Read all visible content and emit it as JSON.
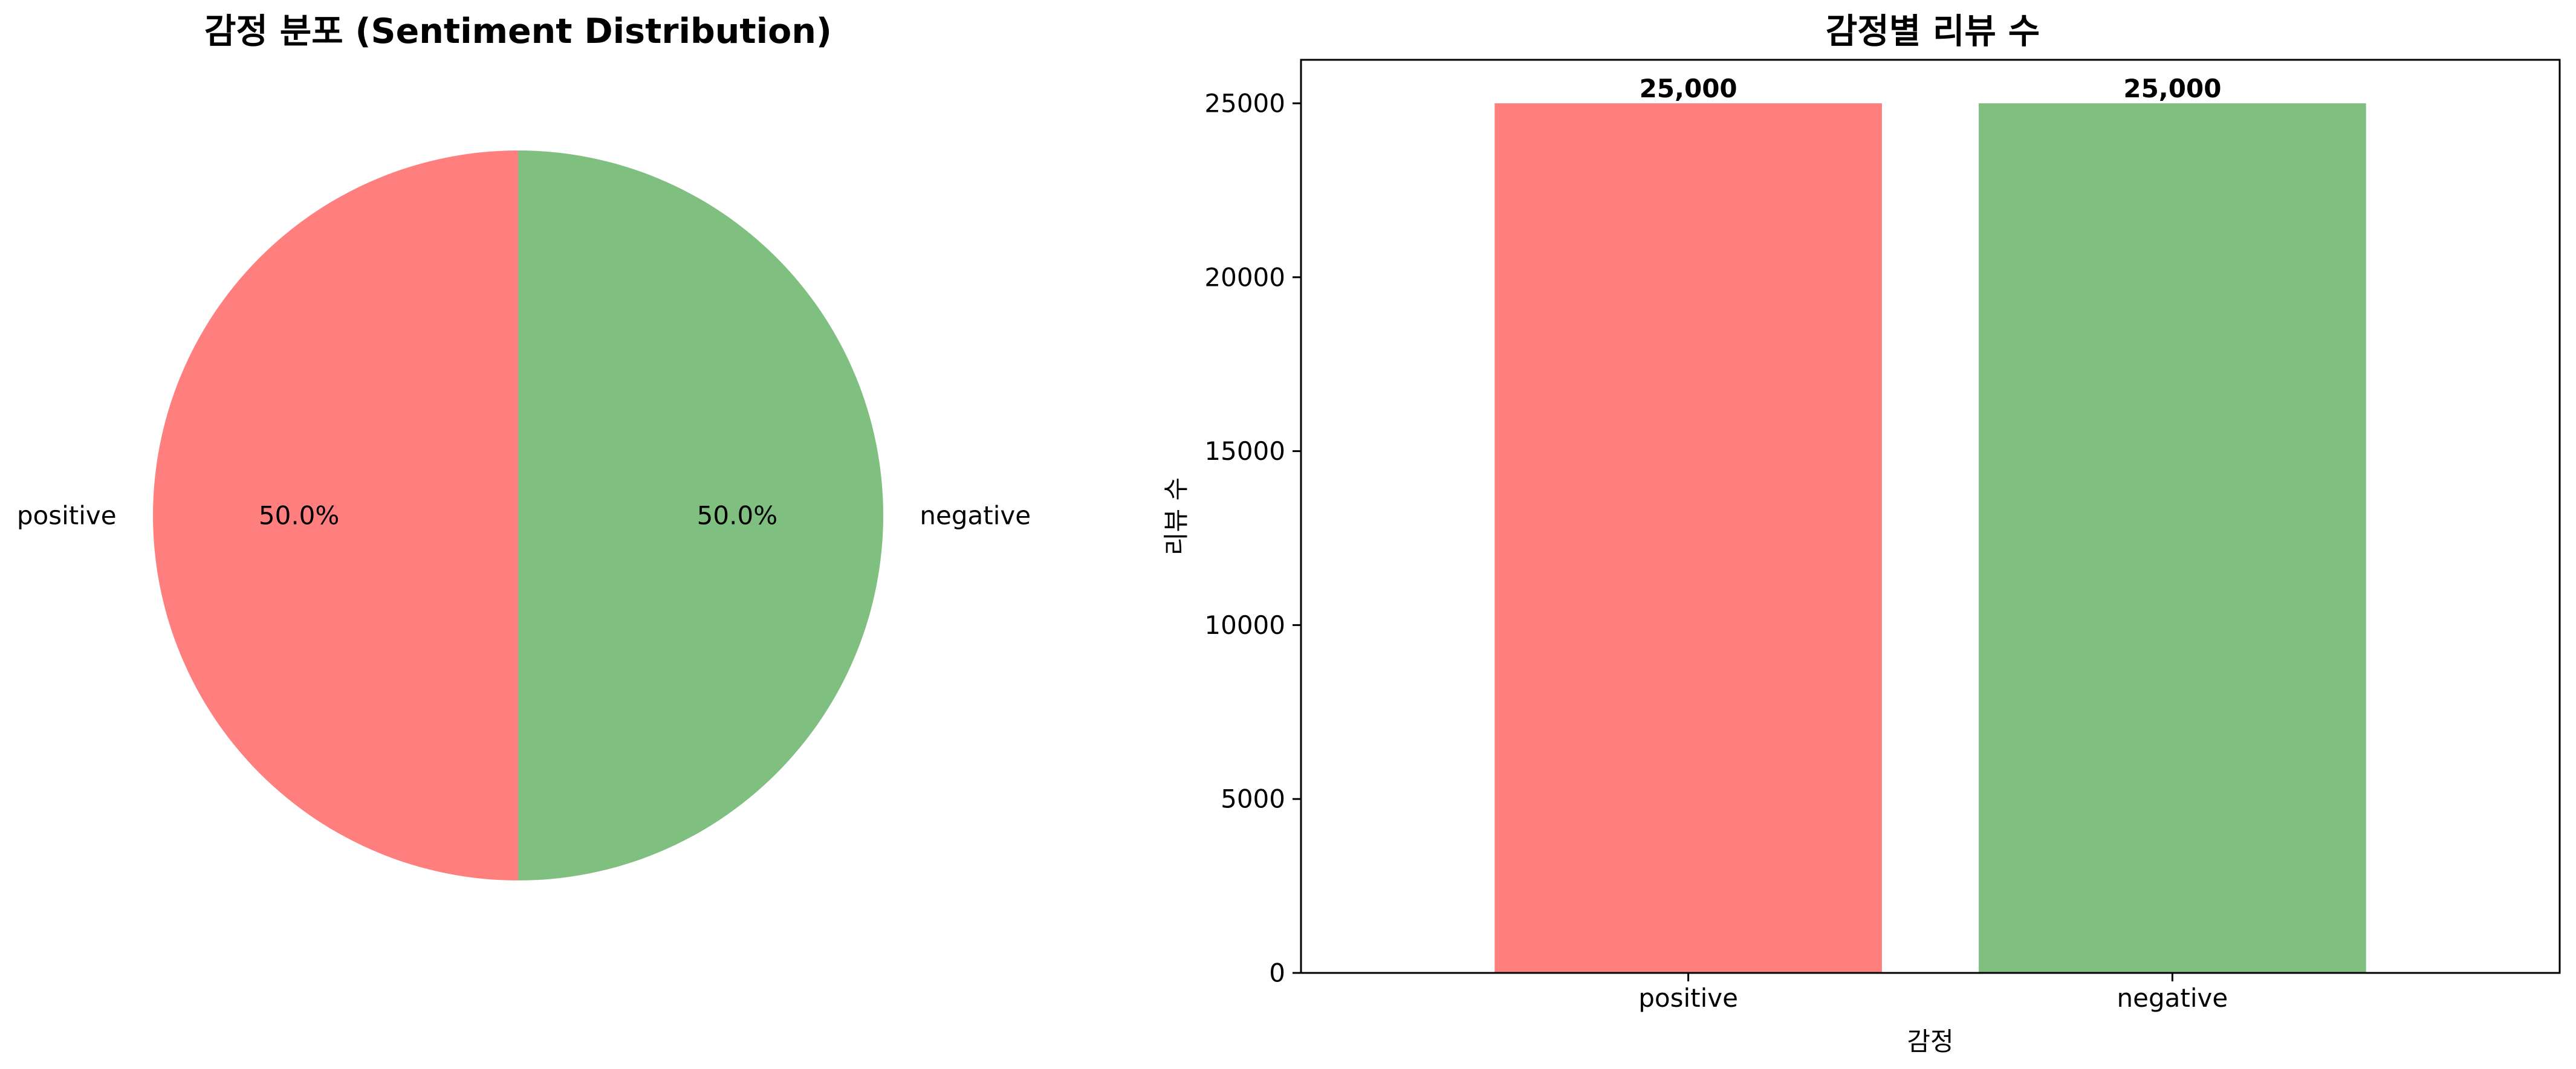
{
  "chart_data": [
    {
      "type": "pie",
      "title": "감정 분포 (Sentiment Distribution)",
      "labels": [
        "positive",
        "negative"
      ],
      "values": [
        50.0,
        50.0
      ],
      "pct_labels": [
        "50.0%",
        "50.0%"
      ],
      "colors": [
        "#ff7f7f",
        "#7fbf7f"
      ],
      "start_angle_deg": 90,
      "direction": "counterclockwise"
    },
    {
      "type": "bar",
      "title": "감정별 리뷰 수",
      "categories": [
        "positive",
        "negative"
      ],
      "values": [
        25000,
        25000
      ],
      "value_labels": [
        "25,000",
        "25,000"
      ],
      "colors": [
        "#ff7f7f",
        "#7fbf7f"
      ],
      "xlabel": "감정",
      "ylabel": "리뷰 수",
      "ylim": [
        0,
        26250
      ],
      "yticks": [
        0,
        5000,
        10000,
        15000,
        20000,
        25000
      ],
      "grid": false
    }
  ]
}
